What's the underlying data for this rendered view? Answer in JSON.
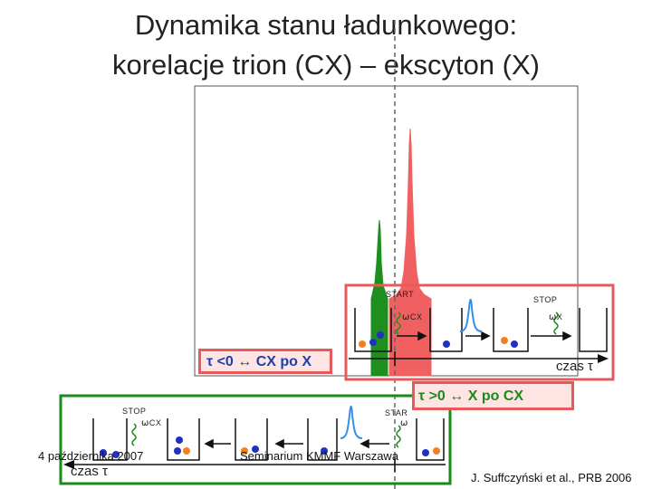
{
  "slide": {
    "title_line1": "Dynamika stanu ładunkowego:",
    "title_line2": "korelacje trion (CX) – ekscyton (X)"
  },
  "panel_upper": {
    "start_label": "START",
    "start_sub": "CX",
    "stop_label": "STOP",
    "stop_sub": "X",
    "tau_negative": "τ <0 ↔ CX po X",
    "time_axis": "czas τ"
  },
  "panel_lower": {
    "tau_positive": "τ >0 ↔ X  po CX",
    "stop_label": "STOP",
    "stop_sub": "CX",
    "start_label": "STAR",
    "time_axis": "czas τ"
  },
  "footer": {
    "date": "4 października 2007",
    "seminar": "Seminarium KMMF Warszawa",
    "citation": "J. Suffczyński et al., PRB 2006"
  },
  "colors": {
    "upper_frame": "#e85a5a",
    "lower_frame": "#1a8a1a",
    "red_peak": "#f06060",
    "green_peak": "#1e8e1e",
    "label_box_fill": "#ffe4e4",
    "bold_blue": "#1a3fb0",
    "bold_green": "#1a8a1a"
  }
}
